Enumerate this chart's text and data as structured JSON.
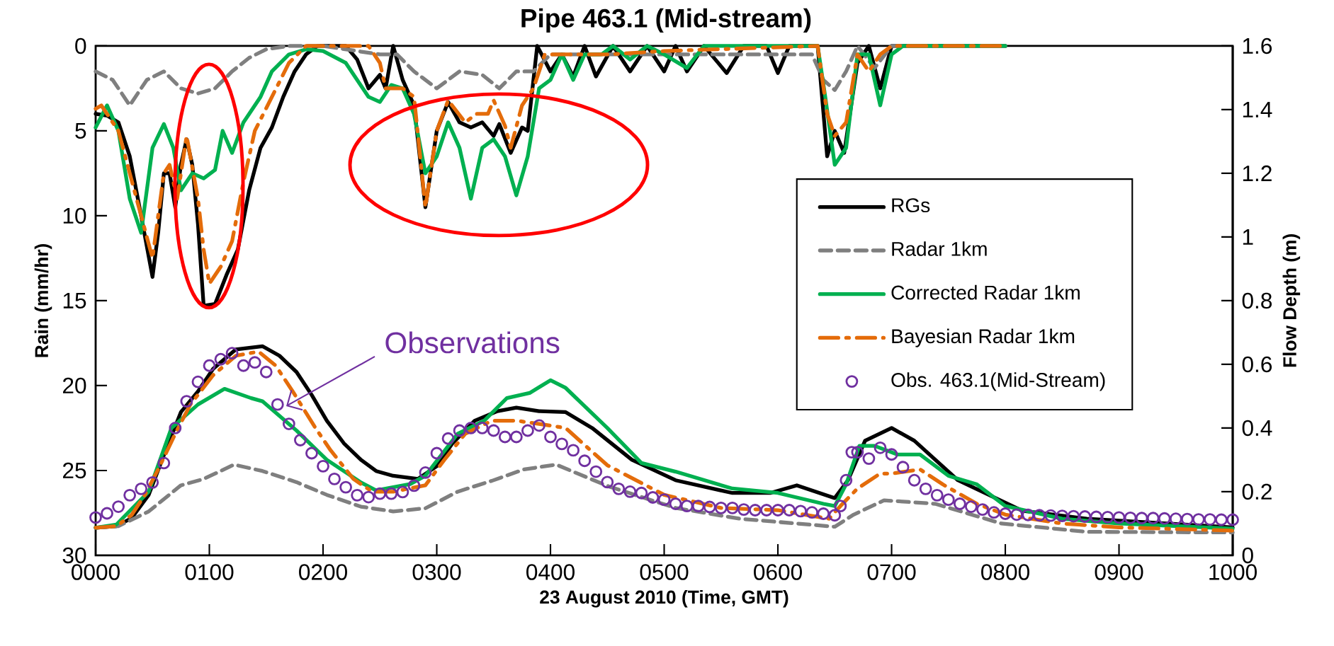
{
  "chart_data": {
    "type": "line",
    "title": "Pipe 463.1 (Mid-stream)",
    "xlabel": "23 August 2010 (Time, GMT)",
    "ylabel": "Rain (mm/hr)",
    "y2label": "Flow Depth (m)",
    "annotations": [
      "Observations"
    ],
    "xlim": [
      "2010-08-23T00:00",
      "2010-08-23T10:00"
    ],
    "xticks": [
      {
        "value": "2010-08-23T00:00",
        "label": "0000"
      },
      {
        "value": "2010-08-23T01:00",
        "label": "0100"
      },
      {
        "value": "2010-08-23T02:00",
        "label": "0200"
      },
      {
        "value": "2010-08-23T03:00",
        "label": "0300"
      },
      {
        "value": "2010-08-23T04:00",
        "label": "0400"
      },
      {
        "value": "2010-08-23T05:00",
        "label": "0500"
      },
      {
        "value": "2010-08-23T06:00",
        "label": "0600"
      },
      {
        "value": "2010-08-23T07:00",
        "label": "0700"
      },
      {
        "value": "2010-08-23T08:00",
        "label": "0800"
      },
      {
        "value": "2010-08-23T09:00",
        "label": "0900"
      },
      {
        "value": "2010-08-23T10:00",
        "label": "1000"
      }
    ],
    "ylim": [
      30,
      0
    ],
    "yticks": [
      0,
      5,
      10,
      15,
      20,
      25,
      30
    ],
    "y2lim": [
      0,
      1.6
    ],
    "y2ticks": [
      0,
      0.2,
      0.4,
      0.6,
      0.8,
      1,
      1.2,
      1.4,
      1.6
    ],
    "legend": "right",
    "series": [
      {
        "axis": "y",
        "color": "#000000",
        "line_style": "solid",
        "x": [
          "2010-08-23T00:00",
          "2010-08-23T00:06",
          "2010-08-23T00:12",
          "2010-08-23T00:18",
          "2010-08-23T00:24",
          "2010-08-23T00:30",
          "2010-08-23T00:33",
          "2010-08-23T00:36",
          "2010-08-23T00:39",
          "2010-08-23T00:42",
          "2010-08-23T00:45",
          "2010-08-23T00:48",
          "2010-08-23T00:51",
          "2010-08-23T00:54",
          "2010-08-23T00:57",
          "2010-08-23T01:03",
          "2010-08-23T01:09",
          "2010-08-23T01:15",
          "2010-08-23T01:21",
          "2010-08-23T01:27",
          "2010-08-23T01:33",
          "2010-08-23T01:39",
          "2010-08-23T01:45",
          "2010-08-23T01:51",
          "2010-08-23T01:57",
          "2010-08-23T02:12",
          "2010-08-23T02:18",
          "2010-08-23T02:24",
          "2010-08-23T02:30",
          "2010-08-23T02:33",
          "2010-08-23T02:37",
          "2010-08-23T02:42",
          "2010-08-23T02:48",
          "2010-08-23T02:54",
          "2010-08-23T03:00",
          "2010-08-23T03:06",
          "2010-08-23T03:12",
          "2010-08-23T03:18",
          "2010-08-23T03:24",
          "2010-08-23T03:30",
          "2010-08-23T03:33",
          "2010-08-23T03:39",
          "2010-08-23T03:45",
          "2010-08-23T03:48",
          "2010-08-23T03:53",
          "2010-08-23T04:00",
          "2010-08-23T04:06",
          "2010-08-23T04:12",
          "2010-08-23T04:18",
          "2010-08-23T04:24",
          "2010-08-23T04:33",
          "2010-08-23T04:42",
          "2010-08-23T04:51",
          "2010-08-23T05:00",
          "2010-08-23T05:06",
          "2010-08-23T05:12",
          "2010-08-23T05:21",
          "2010-08-23T05:33",
          "2010-08-23T05:42",
          "2010-08-23T05:54",
          "2010-08-23T06:00",
          "2010-08-23T06:06",
          "2010-08-23T06:21",
          "2010-08-23T06:26",
          "2010-08-23T06:30",
          "2010-08-23T06:35",
          "2010-08-23T06:42",
          "2010-08-23T06:48",
          "2010-08-23T06:54",
          "2010-08-23T07:00",
          "2010-08-23T08:00"
        ],
        "values": [
          4,
          4.1,
          4.5,
          6.5,
          10,
          13.6,
          11,
          7.5,
          7.5,
          9.5,
          7,
          5.5,
          7,
          10.5,
          15.3,
          15.2,
          13.5,
          12,
          8.5,
          6,
          4.8,
          3,
          1.5,
          0.5,
          0,
          0,
          0.8,
          2.5,
          1.7,
          2.5,
          0,
          2,
          3.5,
          9.5,
          5,
          3.3,
          4.5,
          4.8,
          4.5,
          5.3,
          4.6,
          6.3,
          4.8,
          5,
          0,
          1.5,
          0.5,
          1.8,
          0,
          1.8,
          0,
          1.5,
          0,
          1.5,
          0,
          1.5,
          0,
          1.6,
          0,
          0,
          1.6,
          0,
          0,
          6.5,
          5,
          6.3,
          1,
          0,
          2.5,
          0,
          0
        ]
      },
      {
        "axis": "y",
        "color": "#7f7f7f",
        "line_style": "dashed",
        "x": [
          "2010-08-23T00:00",
          "2010-08-23T00:09",
          "2010-08-23T00:18",
          "2010-08-23T00:27",
          "2010-08-23T00:36",
          "2010-08-23T00:45",
          "2010-08-23T00:54",
          "2010-08-23T01:03",
          "2010-08-23T01:12",
          "2010-08-23T01:21",
          "2010-08-23T01:30",
          "2010-08-23T01:42",
          "2010-08-23T02:00",
          "2010-08-23T02:18",
          "2010-08-23T02:30",
          "2010-08-23T02:39",
          "2010-08-23T02:48",
          "2010-08-23T03:00",
          "2010-08-23T03:12",
          "2010-08-23T03:24",
          "2010-08-23T03:33",
          "2010-08-23T03:42",
          "2010-08-23T03:51",
          "2010-08-23T04:00",
          "2010-08-23T04:12",
          "2010-08-23T05:00",
          "2010-08-23T06:18",
          "2010-08-23T06:24",
          "2010-08-23T06:30",
          "2010-08-23T06:36",
          "2010-08-23T06:42",
          "2010-08-23T06:51",
          "2010-08-23T07:00",
          "2010-08-23T08:00"
        ],
        "values": [
          1.5,
          2,
          3.5,
          2,
          1.5,
          2.5,
          2.8,
          2.5,
          1.5,
          0.7,
          0.2,
          0,
          0,
          0.3,
          0.5,
          0.5,
          1.5,
          2.5,
          1.5,
          1.7,
          2.5,
          1.5,
          1.5,
          0.5,
          0.5,
          0.5,
          0.5,
          2,
          2.6,
          1.5,
          0,
          1.3,
          0,
          0
        ]
      },
      {
        "axis": "y",
        "color": "#00b050",
        "line_style": "solid",
        "x": [
          "2010-08-23T00:00",
          "2010-08-23T00:06",
          "2010-08-23T00:12",
          "2010-08-23T00:18",
          "2010-08-23T00:24",
          "2010-08-23T00:30",
          "2010-08-23T00:36",
          "2010-08-23T00:41",
          "2010-08-23T00:45",
          "2010-08-23T00:51",
          "2010-08-23T00:57",
          "2010-08-23T01:03",
          "2010-08-23T01:07",
          "2010-08-23T01:12",
          "2010-08-23T01:18",
          "2010-08-23T01:27",
          "2010-08-23T01:33",
          "2010-08-23T01:42",
          "2010-08-23T01:51",
          "2010-08-23T02:00",
          "2010-08-23T02:12",
          "2010-08-23T02:24",
          "2010-08-23T02:30",
          "2010-08-23T02:36",
          "2010-08-23T02:42",
          "2010-08-23T02:48",
          "2010-08-23T02:54",
          "2010-08-23T03:00",
          "2010-08-23T03:06",
          "2010-08-23T03:12",
          "2010-08-23T03:18",
          "2010-08-23T03:24",
          "2010-08-23T03:30",
          "2010-08-23T03:36",
          "2010-08-23T03:42",
          "2010-08-23T03:48",
          "2010-08-23T03:54",
          "2010-08-23T04:00",
          "2010-08-23T04:06",
          "2010-08-23T04:12",
          "2010-08-23T04:18",
          "2010-08-23T04:27",
          "2010-08-23T04:33",
          "2010-08-23T04:42",
          "2010-08-23T04:51",
          "2010-08-23T05:00",
          "2010-08-23T05:12",
          "2010-08-23T05:21",
          "2010-08-23T06:21",
          "2010-08-23T06:25",
          "2010-08-23T06:30",
          "2010-08-23T06:36",
          "2010-08-23T06:42",
          "2010-08-23T06:48",
          "2010-08-23T06:54",
          "2010-08-23T07:00",
          "2010-08-23T07:06",
          "2010-08-23T08:00"
        ],
        "values": [
          4.8,
          3.5,
          5,
          9,
          11,
          6,
          4.6,
          6,
          8.5,
          7.5,
          7.8,
          7.3,
          5,
          6.3,
          4.5,
          3,
          1.5,
          0.5,
          0.2,
          0.3,
          1,
          3,
          3.3,
          2.3,
          2.5,
          4,
          7.5,
          6.5,
          4.5,
          6,
          9,
          6,
          5.5,
          6.5,
          8.8,
          6.5,
          2.5,
          2,
          0.5,
          2,
          0.5,
          0.5,
          0,
          0.8,
          0,
          0.5,
          1.3,
          0,
          0,
          3,
          7,
          6,
          0.5,
          0.5,
          3.5,
          0.5,
          0,
          0
        ]
      },
      {
        "axis": "y",
        "color": "#e46c0a",
        "line_style": "dashdot",
        "x": [
          "2010-08-23T00:00",
          "2010-08-23T00:03",
          "2010-08-23T00:06",
          "2010-08-23T00:12",
          "2010-08-23T00:18",
          "2010-08-23T00:24",
          "2010-08-23T00:30",
          "2010-08-23T00:36",
          "2010-08-23T00:39",
          "2010-08-23T00:43",
          "2010-08-23T00:48",
          "2010-08-23T00:54",
          "2010-08-23T00:57",
          "2010-08-23T01:00",
          "2010-08-23T01:06",
          "2010-08-23T01:12",
          "2010-08-23T01:18",
          "2010-08-23T01:24",
          "2010-08-23T01:33",
          "2010-08-23T01:42",
          "2010-08-23T01:51",
          "2010-08-23T02:24",
          "2010-08-23T02:30",
          "2010-08-23T02:33",
          "2010-08-23T02:42",
          "2010-08-23T02:48",
          "2010-08-23T02:54",
          "2010-08-23T03:00",
          "2010-08-23T03:06",
          "2010-08-23T03:15",
          "2010-08-23T03:21",
          "2010-08-23T03:27",
          "2010-08-23T03:30",
          "2010-08-23T03:36",
          "2010-08-23T03:39",
          "2010-08-23T03:45",
          "2010-08-23T03:51",
          "2010-08-23T03:57",
          "2010-08-23T04:30",
          "2010-08-23T05:00",
          "2010-08-23T06:21",
          "2010-08-23T06:26",
          "2010-08-23T06:30",
          "2010-08-23T06:36",
          "2010-08-23T06:42",
          "2010-08-23T06:48",
          "2010-08-23T06:54",
          "2010-08-23T07:00",
          "2010-08-23T08:00"
        ],
        "values": [
          3.7,
          3.5,
          4,
          5,
          7.5,
          10,
          12.5,
          7.5,
          7,
          9,
          5.3,
          9,
          12,
          14,
          13,
          11.5,
          8,
          5,
          3,
          1,
          0,
          0,
          1,
          2.5,
          2.5,
          3,
          9.5,
          5,
          3.2,
          4.5,
          4,
          4,
          3.2,
          4.7,
          6,
          3.5,
          2.5,
          0.5,
          0.5,
          0.3,
          0,
          4,
          5.3,
          4.5,
          0.5,
          1.5,
          0.5,
          0,
          0
        ]
      },
      {
        "axis": "y2",
        "name": "RGs",
        "color": "#000000",
        "line_style": "solid",
        "x": [
          "2010-08-23T00:00",
          "2010-08-23T00:11",
          "2010-08-23T00:19",
          "2010-08-23T00:28",
          "2010-08-23T00:37",
          "2010-08-23T00:45",
          "2010-08-23T00:54",
          "2010-08-23T01:02",
          "2010-08-23T01:14",
          "2010-08-23T01:28",
          "2010-08-23T01:37",
          "2010-08-23T01:46",
          "2010-08-23T01:54",
          "2010-08-23T02:02",
          "2010-08-23T02:11",
          "2010-08-23T02:20",
          "2010-08-23T02:28",
          "2010-08-23T02:37",
          "2010-08-23T02:50",
          "2010-08-23T03:00",
          "2010-08-23T03:08",
          "2010-08-23T03:20",
          "2010-08-23T03:32",
          "2010-08-23T03:42",
          "2010-08-23T03:54",
          "2010-08-23T04:08",
          "2010-08-23T04:22",
          "2010-08-23T04:43",
          "2010-08-23T05:06",
          "2010-08-23T05:36",
          "2010-08-23T05:56",
          "2010-08-23T06:10",
          "2010-08-23T06:30",
          "2010-08-23T06:37",
          "2010-08-23T06:46",
          "2010-08-23T07:00",
          "2010-08-23T07:12",
          "2010-08-23T07:35",
          "2010-08-23T08:09",
          "2010-08-23T08:43",
          "2010-08-23T10:00"
        ],
        "values": [
          0.087,
          0.092,
          0.117,
          0.19,
          0.33,
          0.45,
          0.515,
          0.586,
          0.647,
          0.657,
          0.627,
          0.576,
          0.504,
          0.423,
          0.352,
          0.3,
          0.265,
          0.25,
          0.24,
          0.28,
          0.35,
          0.423,
          0.453,
          0.464,
          0.453,
          0.45,
          0.4,
          0.3,
          0.236,
          0.196,
          0.196,
          0.22,
          0.18,
          0.236,
          0.36,
          0.4,
          0.36,
          0.236,
          0.14,
          0.115,
          0.088
        ]
      },
      {
        "axis": "y2",
        "name": "Radar 1km",
        "color": "#7f7f7f",
        "line_style": "dashed",
        "x": [
          "2010-08-23T00:00",
          "2010-08-23T00:12",
          "2010-08-23T00:28",
          "2010-08-23T00:45",
          "2010-08-23T00:57",
          "2010-08-23T01:13",
          "2010-08-23T01:28",
          "2010-08-23T01:46",
          "2010-08-23T02:02",
          "2010-08-23T02:20",
          "2010-08-23T02:37",
          "2010-08-23T02:54",
          "2010-08-23T03:11",
          "2010-08-23T03:29",
          "2010-08-23T03:46",
          "2010-08-23T04:03",
          "2010-08-23T04:31",
          "2010-08-23T05:06",
          "2010-08-23T05:40",
          "2010-08-23T06:30",
          "2010-08-23T06:40",
          "2010-08-23T06:56",
          "2010-08-23T07:23",
          "2010-08-23T07:58",
          "2010-08-23T08:43",
          "2010-08-23T10:00"
        ],
        "values": [
          0.087,
          0.092,
          0.138,
          0.22,
          0.24,
          0.285,
          0.265,
          0.23,
          0.19,
          0.153,
          0.138,
          0.148,
          0.2,
          0.234,
          0.27,
          0.285,
          0.216,
          0.149,
          0.115,
          0.09,
          0.128,
          0.173,
          0.162,
          0.1,
          0.074,
          0.072
        ]
      },
      {
        "axis": "y2",
        "name": "Corrected Radar 1km",
        "color": "#00b050",
        "line_style": "solid",
        "x": [
          "2010-08-23T00:00",
          "2010-08-23T00:11",
          "2010-08-23T00:28",
          "2010-08-23T00:40",
          "2010-08-23T00:54",
          "2010-08-23T01:08",
          "2010-08-23T01:22",
          "2010-08-23T01:28",
          "2010-08-23T01:46",
          "2010-08-23T02:02",
          "2010-08-23T02:20",
          "2010-08-23T02:28",
          "2010-08-23T02:46",
          "2010-08-23T02:54",
          "2010-08-23T03:11",
          "2010-08-23T03:25",
          "2010-08-23T03:37",
          "2010-08-23T03:49",
          "2010-08-23T04:00",
          "2010-08-23T04:08",
          "2010-08-23T04:30",
          "2010-08-23T04:48",
          "2010-08-23T05:06",
          "2010-08-23T05:36",
          "2010-08-23T06:00",
          "2010-08-23T06:24",
          "2010-08-23T06:30",
          "2010-08-23T06:36",
          "2010-08-23T06:43",
          "2010-08-23T06:51",
          "2010-08-23T07:03",
          "2010-08-23T07:15",
          "2010-08-23T07:30",
          "2010-08-23T07:45",
          "2010-08-23T08:00",
          "2010-08-23T08:30",
          "2010-08-23T09:00",
          "2010-08-23T10:00"
        ],
        "values": [
          0.087,
          0.097,
          0.2,
          0.4,
          0.474,
          0.523,
          0.494,
          0.484,
          0.392,
          0.3,
          0.229,
          0.204,
          0.224,
          0.25,
          0.382,
          0.423,
          0.494,
          0.51,
          0.55,
          0.526,
          0.4,
          0.29,
          0.263,
          0.21,
          0.196,
          0.162,
          0.155,
          0.223,
          0.344,
          0.344,
          0.317,
          0.317,
          0.25,
          0.223,
          0.155,
          0.115,
          0.1,
          0.084
        ]
      },
      {
        "axis": "y2",
        "name": "Bayesian Radar 1km",
        "color": "#e46c0a",
        "line_style": "dashdot",
        "x": [
          "2010-08-23T00:00",
          "2010-08-23T00:11",
          "2010-08-23T00:19",
          "2010-08-23T00:26",
          "2010-08-23T00:33",
          "2010-08-23T00:42",
          "2010-08-23T00:50",
          "2010-08-23T01:02",
          "2010-08-23T01:14",
          "2010-08-23T01:26",
          "2010-08-23T01:35",
          "2010-08-23T01:44",
          "2010-08-23T01:56",
          "2010-08-23T02:04",
          "2010-08-23T02:16",
          "2010-08-23T02:26",
          "2010-08-23T02:37",
          "2010-08-23T02:54",
          "2010-08-23T03:04",
          "2010-08-23T03:15",
          "2010-08-23T03:29",
          "2010-08-23T03:42",
          "2010-08-23T03:54",
          "2010-08-23T04:08",
          "2010-08-23T04:30",
          "2010-08-23T05:00",
          "2010-08-23T05:30",
          "2010-08-23T06:00",
          "2010-08-23T06:27",
          "2010-08-23T06:33",
          "2010-08-23T06:42",
          "2010-08-23T06:54",
          "2010-08-23T07:00",
          "2010-08-23T07:15",
          "2010-08-23T07:27",
          "2010-08-23T07:45",
          "2010-08-23T08:00",
          "2010-08-23T08:30",
          "2010-08-23T09:00",
          "2010-08-23T10:00"
        ],
        "values": [
          0.087,
          0.092,
          0.127,
          0.19,
          0.27,
          0.382,
          0.474,
          0.566,
          0.627,
          0.64,
          0.596,
          0.515,
          0.4,
          0.33,
          0.24,
          0.2,
          0.2,
          0.22,
          0.3,
          0.382,
          0.423,
          0.423,
          0.413,
          0.4,
          0.283,
          0.19,
          0.149,
          0.142,
          0.115,
          0.155,
          0.21,
          0.257,
          0.257,
          0.27,
          0.223,
          0.162,
          0.128,
          0.1,
          0.088,
          0.078
        ]
      },
      {
        "type": "scatter",
        "axis": "y2",
        "name": "Obs. 463.1(Mid-Stream)",
        "color": "#7030a0",
        "marker": "circle",
        "x": [
          "2010-08-23T00:00",
          "2010-08-23T00:06",
          "2010-08-23T00:12",
          "2010-08-23T00:18",
          "2010-08-23T00:24",
          "2010-08-23T00:30",
          "2010-08-23T00:36",
          "2010-08-23T00:42",
          "2010-08-23T00:48",
          "2010-08-23T00:54",
          "2010-08-23T01:00",
          "2010-08-23T01:06",
          "2010-08-23T01:12",
          "2010-08-23T01:18",
          "2010-08-23T01:24",
          "2010-08-23T01:30",
          "2010-08-23T01:36",
          "2010-08-23T01:42",
          "2010-08-23T01:48",
          "2010-08-23T01:54",
          "2010-08-23T02:00",
          "2010-08-23T02:06",
          "2010-08-23T02:12",
          "2010-08-23T02:18",
          "2010-08-23T02:24",
          "2010-08-23T02:30",
          "2010-08-23T02:36",
          "2010-08-23T02:42",
          "2010-08-23T02:48",
          "2010-08-23T02:54",
          "2010-08-23T03:00",
          "2010-08-23T03:06",
          "2010-08-23T03:12",
          "2010-08-23T03:18",
          "2010-08-23T03:24",
          "2010-08-23T03:30",
          "2010-08-23T03:36",
          "2010-08-23T03:42",
          "2010-08-23T03:48",
          "2010-08-23T03:54",
          "2010-08-23T04:00",
          "2010-08-23T04:06",
          "2010-08-23T04:12",
          "2010-08-23T04:18",
          "2010-08-23T04:24",
          "2010-08-23T04:30",
          "2010-08-23T04:36",
          "2010-08-23T04:42",
          "2010-08-23T04:48",
          "2010-08-23T04:54",
          "2010-08-23T05:00",
          "2010-08-23T05:06",
          "2010-08-23T05:12",
          "2010-08-23T05:18",
          "2010-08-23T05:24",
          "2010-08-23T05:30",
          "2010-08-23T05:36",
          "2010-08-23T05:42",
          "2010-08-23T05:48",
          "2010-08-23T05:54",
          "2010-08-23T06:00",
          "2010-08-23T06:06",
          "2010-08-23T06:12",
          "2010-08-23T06:18",
          "2010-08-23T06:24",
          "2010-08-23T06:30",
          "2010-08-23T06:33",
          "2010-08-23T06:36",
          "2010-08-23T06:39",
          "2010-08-23T06:42",
          "2010-08-23T06:48",
          "2010-08-23T06:54",
          "2010-08-23T07:00",
          "2010-08-23T07:06",
          "2010-08-23T07:12",
          "2010-08-23T07:18",
          "2010-08-23T07:24",
          "2010-08-23T07:30",
          "2010-08-23T07:36",
          "2010-08-23T07:42",
          "2010-08-23T07:48",
          "2010-08-23T07:54",
          "2010-08-23T08:00",
          "2010-08-23T08:06",
          "2010-08-23T08:12",
          "2010-08-23T08:18",
          "2010-08-23T08:24",
          "2010-08-23T08:30",
          "2010-08-23T08:36",
          "2010-08-23T08:42",
          "2010-08-23T08:48",
          "2010-08-23T08:54",
          "2010-08-23T09:00",
          "2010-08-23T09:06",
          "2010-08-23T09:12",
          "2010-08-23T09:18",
          "2010-08-23T09:24",
          "2010-08-23T09:30",
          "2010-08-23T09:36",
          "2010-08-23T09:42",
          "2010-08-23T09:48",
          "2010-08-23T09:54",
          "2010-08-23T10:00"
        ],
        "values": [
          0.119,
          0.132,
          0.153,
          0.189,
          0.209,
          0.229,
          0.29,
          0.4,
          0.484,
          0.545,
          0.596,
          0.616,
          0.635,
          0.596,
          0.606,
          0.576,
          0.474,
          0.413,
          0.362,
          0.321,
          0.28,
          0.24,
          0.214,
          0.189,
          0.183,
          0.194,
          0.194,
          0.199,
          0.219,
          0.26,
          0.321,
          0.367,
          0.392,
          0.4,
          0.4,
          0.392,
          0.372,
          0.372,
          0.392,
          0.408,
          0.372,
          0.35,
          0.33,
          0.297,
          0.263,
          0.23,
          0.209,
          0.2,
          0.196,
          0.182,
          0.175,
          0.162,
          0.155,
          0.155,
          0.152,
          0.149,
          0.149,
          0.144,
          0.142,
          0.142,
          0.142,
          0.142,
          0.139,
          0.135,
          0.131,
          0.126,
          0.155,
          0.236,
          0.324,
          0.324,
          0.304,
          0.338,
          0.317,
          0.277,
          0.236,
          0.209,
          0.189,
          0.175,
          0.162,
          0.153,
          0.144,
          0.135,
          0.131,
          0.128,
          0.127,
          0.126,
          0.125,
          0.124,
          0.123,
          0.122,
          0.121,
          0.12,
          0.119,
          0.118,
          0.117,
          0.117,
          0.116,
          0.115,
          0.114,
          0.113,
          0.113,
          0.112,
          0.112
        ]
      }
    ]
  }
}
